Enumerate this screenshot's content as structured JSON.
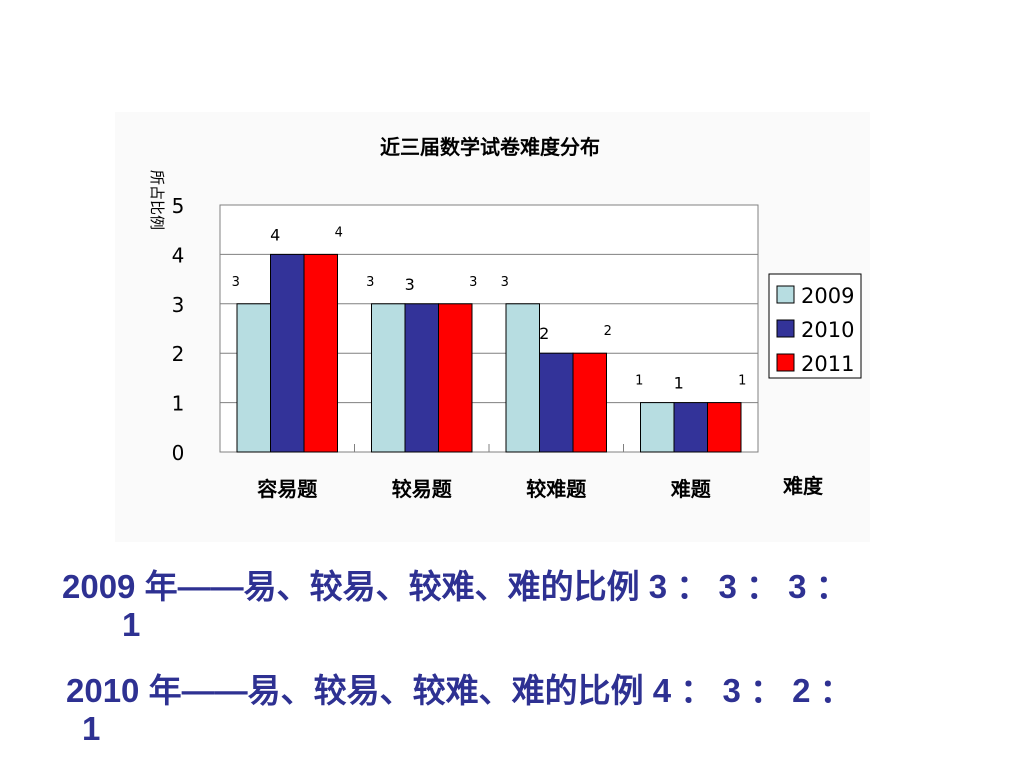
{
  "chart_data": {
    "type": "bar",
    "title": "近三届数学试卷难度分布",
    "ylabel": "所占比例",
    "xlabel": "难度",
    "categories": [
      "容易题",
      "较易题",
      "较难题",
      "难题"
    ],
    "series": [
      {
        "name": "2009",
        "values": [
          3,
          3,
          3,
          1
        ],
        "color": "#b7dde1"
      },
      {
        "name": "2010",
        "values": [
          4,
          3,
          2,
          1
        ],
        "color": "#333399"
      },
      {
        "name": "2011",
        "values": [
          4,
          3,
          2,
          1
        ],
        "color": "#ff0000"
      }
    ],
    "ylim": [
      0,
      5
    ],
    "yticks": [
      "0",
      "1",
      "2",
      "3",
      "4",
      "5"
    ],
    "grid": true,
    "legend": "right",
    "data_labels": true
  },
  "captions": [
    {
      "year": "2009",
      "text": " 年——易、较易、较难、难的比例 3 ： 3 ： 3 ：",
      "tail": "1"
    },
    {
      "year": "2010",
      "text": " 年——易、较易、较难、难的比例 4 ： 3 ： 2 ：",
      "tail": "1"
    }
  ]
}
